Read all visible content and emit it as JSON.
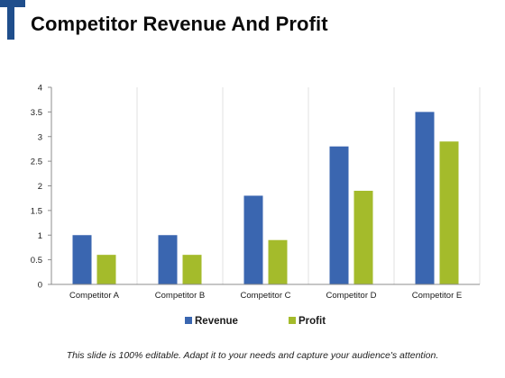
{
  "slide": {
    "title": "Competitor Revenue And Profit",
    "footer": "This slide is 100% editable. Adapt it to your needs and capture your audience's attention."
  },
  "colors": {
    "logo": "#1f4e8c",
    "revenue": "#3a66b0",
    "profit": "#a4bb2b",
    "gridline": "#d9d9d9",
    "axis": "#8c8c8c"
  },
  "chart_data": {
    "type": "bar",
    "categories": [
      "Competitor A",
      "Competitor B",
      "Competitor C",
      "Competitor D",
      "Competitor E"
    ],
    "series": [
      {
        "name": "Revenue",
        "values": [
          1,
          1,
          1.8,
          2.8,
          3.5
        ]
      },
      {
        "name": "Profit",
        "values": [
          0.6,
          0.6,
          0.9,
          1.9,
          2.9
        ]
      }
    ],
    "yticks": [
      "0",
      "0.5",
      "1",
      "1.5",
      "2",
      "2.5",
      "3",
      "3.5",
      "4"
    ],
    "ylim": [
      0,
      4
    ],
    "grid": "vertical category dividers",
    "legend": "bottom-center"
  }
}
